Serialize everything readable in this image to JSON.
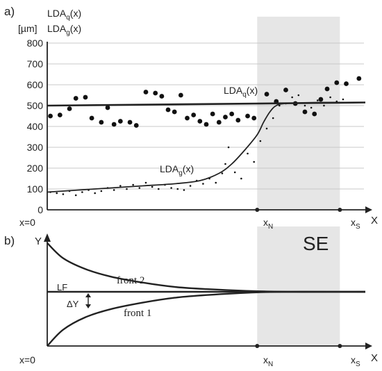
{
  "panel_a": {
    "label": "a)",
    "legend_line1": "LDAq(x)",
    "legend_line2": "LDAg(x)",
    "ylabel": "[µm]",
    "origin_label": "x=0",
    "xn_label": "xN",
    "xs_label": "xS",
    "x_axis_label": "X",
    "curve_q_label": "LDAq(x)",
    "curve_g_label": "LDAg(x)"
  },
  "panel_b": {
    "label": "b)",
    "y_axis_label": "Y",
    "region_label": "SE",
    "front2_label": "front 2",
    "front1_label": "front 1",
    "lf_label": "LF",
    "dy_label": "ΔY",
    "origin_label": "x=0",
    "xn_label": "xN",
    "xs_label": "xS",
    "x_axis_label": "X"
  },
  "chart_data": [
    {
      "type": "scatter",
      "ylim": [
        0,
        800
      ],
      "yticks": [
        "0",
        "100",
        "200",
        "300",
        "400",
        "500",
        "600",
        "700",
        "800"
      ],
      "xlim": [
        0,
        1
      ],
      "xn": 0.66,
      "xs": 0.92,
      "shaded_region": [
        0.66,
        0.92
      ],
      "grid": true,
      "series": [
        {
          "name": "LDAq(x)",
          "marker": "large-dot",
          "points": [
            [
              0.01,
              450
            ],
            [
              0.04,
              455
            ],
            [
              0.07,
              485
            ],
            [
              0.09,
              535
            ],
            [
              0.12,
              540
            ],
            [
              0.14,
              440
            ],
            [
              0.17,
              420
            ],
            [
              0.19,
              490
            ],
            [
              0.21,
              410
            ],
            [
              0.23,
              425
            ],
            [
              0.26,
              420
            ],
            [
              0.28,
              405
            ],
            [
              0.31,
              565
            ],
            [
              0.34,
              560
            ],
            [
              0.36,
              545
            ],
            [
              0.38,
              480
            ],
            [
              0.4,
              470
            ],
            [
              0.42,
              550
            ],
            [
              0.44,
              440
            ],
            [
              0.46,
              455
            ],
            [
              0.48,
              425
            ],
            [
              0.5,
              410
            ],
            [
              0.52,
              460
            ],
            [
              0.54,
              420
            ],
            [
              0.56,
              445
            ],
            [
              0.58,
              460
            ],
            [
              0.6,
              430
            ],
            [
              0.63,
              450
            ],
            [
              0.65,
              440
            ],
            [
              0.69,
              555
            ],
            [
              0.72,
              520
            ],
            [
              0.75,
              575
            ],
            [
              0.78,
              510
            ],
            [
              0.81,
              470
            ],
            [
              0.84,
              460
            ],
            [
              0.86,
              530
            ],
            [
              0.88,
              580
            ],
            [
              0.91,
              610
            ],
            [
              0.94,
              605
            ],
            [
              0.98,
              630
            ]
          ],
          "fit_line": [
            [
              0,
              500
            ],
            [
              1,
              515
            ]
          ]
        },
        {
          "name": "LDAg(x)",
          "marker": "small-dot",
          "points": [
            [
              0.01,
              85
            ],
            [
              0.03,
              80
            ],
            [
              0.05,
              75
            ],
            [
              0.07,
              90
            ],
            [
              0.09,
              70
            ],
            [
              0.11,
              85
            ],
            [
              0.13,
              95
            ],
            [
              0.15,
              80
            ],
            [
              0.17,
              90
            ],
            [
              0.19,
              105
            ],
            [
              0.21,
              95
            ],
            [
              0.23,
              115
            ],
            [
              0.25,
              100
            ],
            [
              0.27,
              120
            ],
            [
              0.29,
              105
            ],
            [
              0.31,
              130
            ],
            [
              0.33,
              110
            ],
            [
              0.35,
              100
            ],
            [
              0.37,
              120
            ],
            [
              0.39,
              105
            ],
            [
              0.41,
              100
            ],
            [
              0.43,
              95
            ],
            [
              0.45,
              115
            ],
            [
              0.47,
              140
            ],
            [
              0.49,
              125
            ],
            [
              0.51,
              150
            ],
            [
              0.53,
              130
            ],
            [
              0.55,
              175
            ],
            [
              0.56,
              220
            ],
            [
              0.57,
              300
            ],
            [
              0.59,
              180
            ],
            [
              0.61,
              150
            ],
            [
              0.63,
              270
            ],
            [
              0.65,
              230
            ],
            [
              0.67,
              330
            ],
            [
              0.69,
              390
            ],
            [
              0.71,
              440
            ],
            [
              0.73,
              500
            ],
            [
              0.75,
              510
            ],
            [
              0.77,
              540
            ],
            [
              0.79,
              550
            ],
            [
              0.81,
              500
            ],
            [
              0.83,
              490
            ],
            [
              0.85,
              525
            ],
            [
              0.87,
              500
            ],
            [
              0.89,
              540
            ],
            [
              0.91,
              520
            ],
            [
              0.93,
              530
            ]
          ],
          "fit_curve": [
            [
              0,
              85
            ],
            [
              0.1,
              95
            ],
            [
              0.2,
              105
            ],
            [
              0.3,
              115
            ],
            [
              0.4,
              125
            ],
            [
              0.48,
              140
            ],
            [
              0.54,
              175
            ],
            [
              0.58,
              220
            ],
            [
              0.62,
              285
            ],
            [
              0.66,
              360
            ],
            [
              0.68,
              420
            ],
            [
              0.7,
              470
            ],
            [
              0.72,
              500
            ],
            [
              0.75,
              510
            ],
            [
              0.85,
              515
            ],
            [
              1,
              515
            ]
          ]
        }
      ]
    },
    {
      "type": "line",
      "xlim": [
        0,
        1
      ],
      "xn": 0.66,
      "xs": 0.92,
      "shaded_region": [
        0.66,
        0.92
      ],
      "series": [
        {
          "name": "front 2",
          "points": [
            [
              0,
              0.9
            ],
            [
              0.05,
              0.62
            ],
            [
              0.12,
              0.42
            ],
            [
              0.2,
              0.28
            ],
            [
              0.3,
              0.17
            ],
            [
              0.4,
              0.09
            ],
            [
              0.5,
              0.05
            ],
            [
              0.66,
              0.01
            ],
            [
              0.8,
              0
            ],
            [
              1,
              0
            ]
          ]
        },
        {
          "name": "LF",
          "points": [
            [
              0,
              0
            ],
            [
              1,
              0
            ]
          ]
        },
        {
          "name": "front 1",
          "points": [
            [
              0,
              -1.0
            ],
            [
              0.05,
              -0.7
            ],
            [
              0.12,
              -0.47
            ],
            [
              0.2,
              -0.32
            ],
            [
              0.3,
              -0.2
            ],
            [
              0.4,
              -0.11
            ],
            [
              0.5,
              -0.06
            ],
            [
              0.66,
              -0.01
            ],
            [
              0.8,
              0
            ],
            [
              1,
              0
            ]
          ]
        }
      ]
    }
  ]
}
